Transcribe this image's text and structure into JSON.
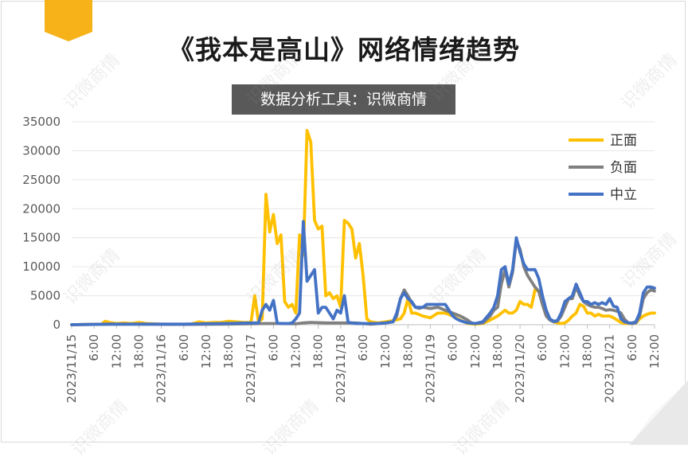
{
  "title": "《我本是高山》网络情绪趋势",
  "subtitle": "数据分析工具：识微商情",
  "watermark": "识微商情",
  "colors": {
    "accent": "#F7B21A",
    "正面": "#FFC000",
    "负面": "#808080",
    "中立": "#4472C4",
    "grid": "#e6e6e6"
  },
  "chart_data": {
    "type": "line",
    "y_ticks": [
      "0",
      "5000",
      "10000",
      "15000",
      "20000",
      "25000",
      "30000",
      "35000"
    ],
    "ylim": [
      0,
      35000
    ],
    "x_range_hours": [
      0,
      156
    ],
    "x_tick_labels": [
      "2023/11/15",
      "6:00",
      "12:00",
      "18:00",
      "2023/11/16",
      "6:00",
      "12:00",
      "18:00",
      "2023/11/17",
      "6:00",
      "12:00",
      "18:00",
      "2023/11/18",
      "6:00",
      "12:00",
      "18:00",
      "2023/11/19",
      "6:00",
      "12:00",
      "18:00",
      "2023/11/20",
      "6:00",
      "12:00",
      "18:00",
      "2023/11/21",
      "6:00",
      "12:00"
    ],
    "grid": true,
    "legend_position": "top-right",
    "series": [
      {
        "name": "正面",
        "points": [
          [
            0,
            0
          ],
          [
            4,
            50
          ],
          [
            8,
            100
          ],
          [
            9,
            600
          ],
          [
            10,
            400
          ],
          [
            12,
            200
          ],
          [
            14,
            300
          ],
          [
            16,
            200
          ],
          [
            18,
            400
          ],
          [
            20,
            200
          ],
          [
            22,
            150
          ],
          [
            24,
            100
          ],
          [
            28,
            50
          ],
          [
            32,
            100
          ],
          [
            34,
            500
          ],
          [
            36,
            300
          ],
          [
            38,
            400
          ],
          [
            40,
            400
          ],
          [
            42,
            600
          ],
          [
            44,
            500
          ],
          [
            46,
            400
          ],
          [
            48,
            400
          ],
          [
            49,
            5000
          ],
          [
            50,
            500
          ],
          [
            51,
            1000
          ],
          [
            52,
            22500
          ],
          [
            53,
            16000
          ],
          [
            54,
            19000
          ],
          [
            55,
            14000
          ],
          [
            56,
            15500
          ],
          [
            57,
            4000
          ],
          [
            58,
            3000
          ],
          [
            59,
            3500
          ],
          [
            60,
            2000
          ],
          [
            61,
            15500
          ],
          [
            62,
            12000
          ],
          [
            63,
            33500
          ],
          [
            64,
            31500
          ],
          [
            65,
            18000
          ],
          [
            66,
            16500
          ],
          [
            67,
            17000
          ],
          [
            68,
            5000
          ],
          [
            69,
            5500
          ],
          [
            70,
            4500
          ],
          [
            71,
            5000
          ],
          [
            72,
            3000
          ],
          [
            73,
            18000
          ],
          [
            74,
            17500
          ],
          [
            75,
            16500
          ],
          [
            76,
            11500
          ],
          [
            77,
            14000
          ],
          [
            78,
            8500
          ],
          [
            79,
            1000
          ],
          [
            80,
            500
          ],
          [
            82,
            300
          ],
          [
            84,
            500
          ],
          [
            86,
            700
          ],
          [
            88,
            1000
          ],
          [
            89,
            2000
          ],
          [
            90,
            4500
          ],
          [
            91,
            2000
          ],
          [
            92,
            2000
          ],
          [
            94,
            1500
          ],
          [
            96,
            1200
          ],
          [
            98,
            2000
          ],
          [
            100,
            2000
          ],
          [
            102,
            1500
          ],
          [
            104,
            800
          ],
          [
            106,
            200
          ],
          [
            108,
            100
          ],
          [
            110,
            200
          ],
          [
            112,
            800
          ],
          [
            114,
            1500
          ],
          [
            116,
            2500
          ],
          [
            117,
            2000
          ],
          [
            118,
            2000
          ],
          [
            119,
            2500
          ],
          [
            120,
            4000
          ],
          [
            121,
            3500
          ],
          [
            122,
            3500
          ],
          [
            123,
            3000
          ],
          [
            124,
            6000
          ],
          [
            125,
            5800
          ],
          [
            126,
            4000
          ],
          [
            127,
            2500
          ],
          [
            128,
            1000
          ],
          [
            129,
            500
          ],
          [
            130,
            300
          ],
          [
            131,
            200
          ],
          [
            132,
            300
          ],
          [
            133,
            800
          ],
          [
            134,
            1500
          ],
          [
            135,
            2000
          ],
          [
            136,
            3500
          ],
          [
            137,
            3200
          ],
          [
            138,
            2000
          ],
          [
            139,
            2000
          ],
          [
            140,
            1500
          ],
          [
            141,
            1800
          ],
          [
            142,
            1500
          ],
          [
            143,
            1500
          ],
          [
            144,
            1500
          ],
          [
            145,
            1200
          ],
          [
            146,
            800
          ],
          [
            147,
            400
          ],
          [
            148,
            200
          ],
          [
            149,
            200
          ],
          [
            150,
            200
          ],
          [
            151,
            300
          ],
          [
            152,
            1000
          ],
          [
            153,
            1500
          ],
          [
            154,
            1800
          ],
          [
            155,
            2000
          ],
          [
            156,
            2000
          ]
        ]
      },
      {
        "name": "负面",
        "points": [
          [
            0,
            0
          ],
          [
            10,
            100
          ],
          [
            20,
            100
          ],
          [
            30,
            50
          ],
          [
            40,
            100
          ],
          [
            48,
            150
          ],
          [
            52,
            200
          ],
          [
            56,
            200
          ],
          [
            60,
            150
          ],
          [
            62,
            300
          ],
          [
            64,
            400
          ],
          [
            68,
            300
          ],
          [
            72,
            300
          ],
          [
            76,
            300
          ],
          [
            78,
            200
          ],
          [
            80,
            100
          ],
          [
            84,
            300
          ],
          [
            86,
            500
          ],
          [
            87,
            1500
          ],
          [
            88,
            4500
          ],
          [
            89,
            6000
          ],
          [
            90,
            5000
          ],
          [
            91,
            3800
          ],
          [
            92,
            3000
          ],
          [
            93,
            2800
          ],
          [
            94,
            3000
          ],
          [
            96,
            2800
          ],
          [
            98,
            3000
          ],
          [
            100,
            2500
          ],
          [
            102,
            2000
          ],
          [
            104,
            1500
          ],
          [
            106,
            800
          ],
          [
            107,
            300
          ],
          [
            108,
            200
          ],
          [
            110,
            300
          ],
          [
            112,
            1500
          ],
          [
            113,
            2500
          ],
          [
            114,
            3000
          ],
          [
            115,
            7000
          ],
          [
            116,
            9500
          ],
          [
            117,
            6500
          ],
          [
            118,
            9000
          ],
          [
            119,
            14500
          ],
          [
            120,
            13000
          ],
          [
            121,
            10000
          ],
          [
            122,
            8500
          ],
          [
            123,
            7500
          ],
          [
            124,
            6500
          ],
          [
            125,
            5800
          ],
          [
            126,
            3500
          ],
          [
            127,
            1500
          ],
          [
            128,
            800
          ],
          [
            129,
            500
          ],
          [
            130,
            600
          ],
          [
            131,
            1500
          ],
          [
            132,
            3000
          ],
          [
            133,
            4500
          ],
          [
            134,
            4500
          ],
          [
            135,
            6500
          ],
          [
            136,
            5000
          ],
          [
            137,
            4000
          ],
          [
            138,
            3500
          ],
          [
            139,
            3200
          ],
          [
            140,
            3000
          ],
          [
            141,
            3000
          ],
          [
            142,
            2800
          ],
          [
            143,
            2500
          ],
          [
            144,
            2600
          ],
          [
            145,
            2500
          ],
          [
            146,
            2300
          ],
          [
            147,
            2000
          ],
          [
            148,
            900
          ],
          [
            149,
            300
          ],
          [
            150,
            200
          ],
          [
            151,
            300
          ],
          [
            152,
            1500
          ],
          [
            153,
            4500
          ],
          [
            154,
            5500
          ],
          [
            155,
            6000
          ],
          [
            156,
            5800
          ]
        ]
      },
      {
        "name": "中立",
        "points": [
          [
            0,
            0
          ],
          [
            10,
            100
          ],
          [
            20,
            100
          ],
          [
            30,
            100
          ],
          [
            40,
            200
          ],
          [
            48,
            300
          ],
          [
            50,
            300
          ],
          [
            51,
            2500
          ],
          [
            52,
            3500
          ],
          [
            53,
            2500
          ],
          [
            54,
            4200
          ],
          [
            55,
            300
          ],
          [
            56,
            200
          ],
          [
            57,
            200
          ],
          [
            58,
            200
          ],
          [
            59,
            300
          ],
          [
            60,
            1000
          ],
          [
            61,
            2000
          ],
          [
            62,
            17800
          ],
          [
            63,
            7500
          ],
          [
            64,
            8500
          ],
          [
            65,
            9500
          ],
          [
            66,
            2000
          ],
          [
            67,
            3000
          ],
          [
            68,
            3000
          ],
          [
            69,
            2000
          ],
          [
            70,
            1000
          ],
          [
            71,
            2500
          ],
          [
            72,
            2000
          ],
          [
            73,
            5000
          ],
          [
            74,
            400
          ],
          [
            75,
            300
          ],
          [
            76,
            200
          ],
          [
            80,
            200
          ],
          [
            82,
            200
          ],
          [
            84,
            300
          ],
          [
            86,
            500
          ],
          [
            87,
            2000
          ],
          [
            88,
            4500
          ],
          [
            89,
            5500
          ],
          [
            90,
            4500
          ],
          [
            91,
            4000
          ],
          [
            92,
            3000
          ],
          [
            93,
            3000
          ],
          [
            94,
            3000
          ],
          [
            95,
            3500
          ],
          [
            96,
            3500
          ],
          [
            97,
            3500
          ],
          [
            98,
            3500
          ],
          [
            99,
            3500
          ],
          [
            100,
            3500
          ],
          [
            101,
            2500
          ],
          [
            102,
            1500
          ],
          [
            103,
            1000
          ],
          [
            104,
            700
          ],
          [
            106,
            300
          ],
          [
            108,
            200
          ],
          [
            110,
            500
          ],
          [
            112,
            2000
          ],
          [
            113,
            3000
          ],
          [
            114,
            5000
          ],
          [
            115,
            9500
          ],
          [
            116,
            10000
          ],
          [
            117,
            7000
          ],
          [
            118,
            9500
          ],
          [
            119,
            15000
          ],
          [
            120,
            12500
          ],
          [
            121,
            10500
          ],
          [
            122,
            9500
          ],
          [
            123,
            9500
          ],
          [
            124,
            9500
          ],
          [
            125,
            8000
          ],
          [
            126,
            5000
          ],
          [
            127,
            2500
          ],
          [
            128,
            1000
          ],
          [
            129,
            600
          ],
          [
            130,
            700
          ],
          [
            131,
            2000
          ],
          [
            132,
            4000
          ],
          [
            133,
            4500
          ],
          [
            134,
            5000
          ],
          [
            135,
            7000
          ],
          [
            136,
            5500
          ],
          [
            137,
            4000
          ],
          [
            138,
            4000
          ],
          [
            139,
            3500
          ],
          [
            140,
            3800
          ],
          [
            141,
            3500
          ],
          [
            142,
            3800
          ],
          [
            143,
            3500
          ],
          [
            144,
            4500
          ],
          [
            145,
            3200
          ],
          [
            146,
            3000
          ],
          [
            147,
            1000
          ],
          [
            148,
            500
          ],
          [
            149,
            300
          ],
          [
            150,
            300
          ],
          [
            151,
            500
          ],
          [
            152,
            2000
          ],
          [
            153,
            5500
          ],
          [
            154,
            6500
          ],
          [
            155,
            6500
          ],
          [
            156,
            6300
          ]
        ]
      }
    ]
  }
}
